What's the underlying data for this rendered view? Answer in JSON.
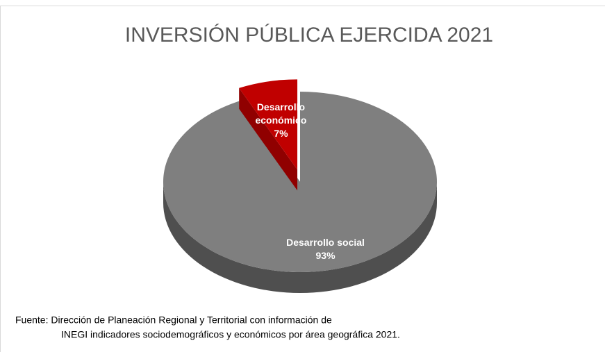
{
  "chart_data": {
    "type": "pie",
    "title": "INVERSIÓN PÚBLICA EJERCIDA  2021",
    "categories": [
      "Desarrollo económico",
      "Desarrollo social"
    ],
    "values": [
      7,
      93
    ],
    "value_labels": [
      "7%",
      "93%"
    ],
    "colors": [
      "#c00000",
      "#7f7f7f"
    ],
    "source": [
      "Fuente: Dirección de Planeación Regional y Territorial con información de",
      "INEGI  indicadores sociodemográficos y económicos por área geográfica 2021."
    ]
  }
}
